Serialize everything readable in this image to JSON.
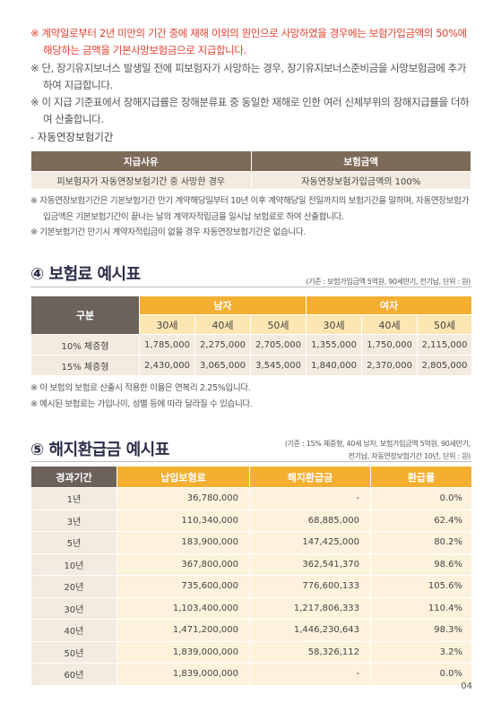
{
  "notes_top": [
    "※ 계약일로부터 2년 미만의 기간 중에 재해 이외의 원인으로 사망하였을 경우에는 보험가입금액의 50%에 해당하는 금액을 기본사망보험금으로 지급합니다.",
    "※ 단, 장기유지보너스 발생일 전에 피보험자가 사망하는 경우, 장기유지보너스준비금을 사망보험금에 추가하여 지급합니다.",
    "※ 이 지급 기준표에서 장해지급률은 장해분류표 중 동일한 재해로 인한 여러 신체부위의 장해지급률을 더하여 산출합니다."
  ],
  "auto_extension": {
    "title": "- 자동연장보험기간",
    "table": {
      "header": [
        "지급사유",
        "보험금액"
      ],
      "rows": [
        [
          "피보험자가 자동연장보험기간 중 사망한 경우",
          "자동연장보험가입금액의 100%"
        ]
      ]
    },
    "notes": [
      "※ 자동연장보험기간은 기본보험기간 만기 계약해당일부터 10년 이후 계약해당일 전일까지의 보험기간을 말하며, 자동연장보험가입금액은 기본보험기간이 끝나는 날의 계약자적립금을 일시납 보험료로 하여 산출합니다.",
      "※ 기본보험기간 만기시 계약자적립금이 없을 경우 자동연장보험기간은 없습니다."
    ]
  },
  "premium_section": {
    "title": "④ 보험료 예시표",
    "basis": "(기준 : 보험가입금액 5억원, 90세만기, 전기납, 단위 : 원)",
    "table": {
      "corner": "구분",
      "groups": [
        "남자",
        "여자"
      ],
      "ages": [
        "30세",
        "40세",
        "50세",
        "30세",
        "40세",
        "50세"
      ],
      "rows": [
        {
          "label": "10% 체증형",
          "values": [
            "1,785,000",
            "2,275,000",
            "2,705,000",
            "1,355,000",
            "1,750,000",
            "2,115,000"
          ]
        },
        {
          "label": "15% 체증형",
          "values": [
            "2,430,000",
            "3,065,000",
            "3,545,000",
            "1,840,000",
            "2,370,000",
            "2,805,000"
          ]
        }
      ]
    },
    "notes": [
      "※ 이 보험의 보험료 산출시 적용한 이율은 연복리 2.25%입니다.",
      "※ 예시된 보험료는 가입나이, 성별 등에 따라 달라질 수 있습니다."
    ]
  },
  "refund_section": {
    "title": "⑤ 해지환급금 예시표",
    "basis_lines": [
      "(기준 : 15% 체증형, 40세 남자, 보험가입금액 5억원, 90세만기,",
      "전기납, 자동연장보험기간 10년, 단위 : 원)"
    ],
    "table": {
      "header": [
        "경과기간",
        "납입보험료",
        "해지환급금",
        "환급률"
      ],
      "rows": [
        [
          "1년",
          "36,780,000",
          "-",
          "0.0%"
        ],
        [
          "3년",
          "110,340,000",
          "68,885,000",
          "62.4%"
        ],
        [
          "5년",
          "183,900,000",
          "147,425,000",
          "80.2%"
        ],
        [
          "10년",
          "367,800,000",
          "362,541,370",
          "98.6%"
        ],
        [
          "20년",
          "735,600,000",
          "776,600,133",
          "105.6%"
        ],
        [
          "30년",
          "1,103,400,000",
          "1,217,806,333",
          "110.4%"
        ],
        [
          "40년",
          "1,471,200,000",
          "1,446,230,643",
          "98.3%"
        ],
        [
          "50년",
          "1,839,000,000",
          "58,326,112",
          "3.2%"
        ],
        [
          "60년",
          "1,839,000,000",
          "-",
          "0.0%"
        ]
      ]
    }
  },
  "page_number": "04"
}
